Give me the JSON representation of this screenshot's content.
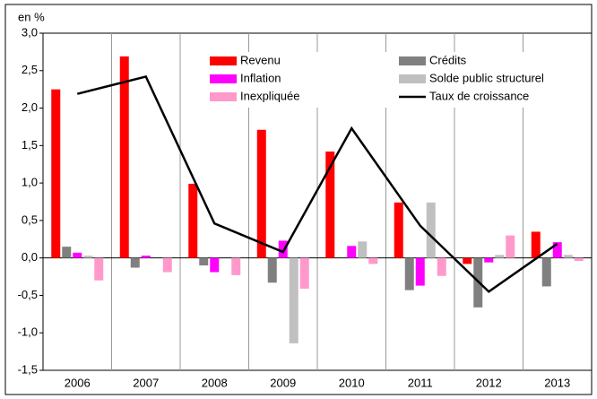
{
  "chart_data": {
    "type": "bar",
    "y_label": "en %",
    "categories": [
      "2006",
      "2007",
      "2008",
      "2009",
      "2010",
      "2011",
      "2012",
      "2013"
    ],
    "series": [
      {
        "name": "Revenu",
        "color": "#ff0000",
        "values": [
          2.25,
          2.69,
          0.99,
          1.71,
          1.42,
          0.74,
          -0.08,
          0.35
        ]
      },
      {
        "name": "Crédits",
        "color": "#808080",
        "values": [
          0.15,
          -0.13,
          -0.1,
          -0.33,
          0.0,
          -0.43,
          -0.66,
          -0.38
        ]
      },
      {
        "name": "Inflation",
        "color": "#ff00ff",
        "values": [
          0.07,
          0.03,
          -0.19,
          0.23,
          0.16,
          -0.37,
          -0.06,
          0.21
        ]
      },
      {
        "name": "Solde public structurel",
        "color": "#c0c0c0",
        "values": [
          0.03,
          0.0,
          0.0,
          -1.14,
          0.22,
          0.74,
          0.04,
          0.04
        ]
      },
      {
        "name": "Inexpliquée",
        "color": "#ff99cc",
        "values": [
          -0.3,
          -0.19,
          -0.23,
          -0.41,
          -0.08,
          -0.24,
          0.3,
          -0.04
        ]
      },
      {
        "name": "Taux de croissance",
        "color": "#000000",
        "type": "line",
        "values": [
          2.19,
          2.42,
          0.46,
          0.08,
          1.73,
          0.43,
          -0.45,
          0.19
        ]
      }
    ],
    "ylim": [
      -1.5,
      3.0
    ],
    "yticks": [
      {
        "value": -1.5,
        "label": "-1,5"
      },
      {
        "value": -1.0,
        "label": "-1,0"
      },
      {
        "value": -0.5,
        "label": "-0,5"
      },
      {
        "value": 0,
        "label": "0,0"
      },
      {
        "value": 0.5,
        "label": "0,5"
      },
      {
        "value": 1.0,
        "label": "1,0"
      },
      {
        "value": 1.5,
        "label": "1,5"
      },
      {
        "value": 2.0,
        "label": "2,0"
      },
      {
        "value": 2.5,
        "label": "2,5"
      },
      {
        "value": 3.0,
        "label": "3,0"
      }
    ],
    "legend": "top"
  }
}
